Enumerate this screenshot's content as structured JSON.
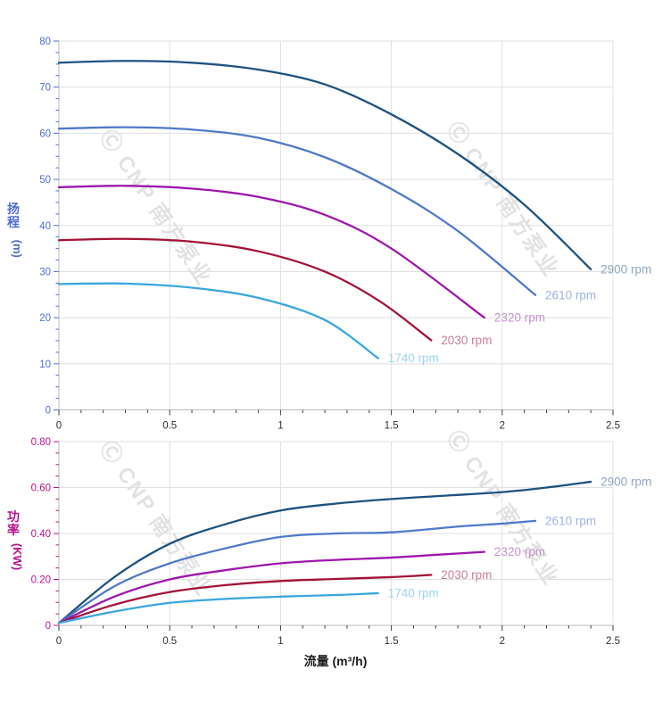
{
  "figure": {
    "x_axis_title": "流量 (m³/h)",
    "watermark": {
      "logo_glyph": "Ⓒ",
      "text": "CNP 南方泵业",
      "color": "#e2e2e2"
    },
    "background": "#ffffff",
    "grid_color": "#dfdfdf",
    "axis_line_color": "#bcbcbc",
    "x_tick_color": "#3c3c3c"
  },
  "chart_data": [
    {
      "type": "line",
      "id": "head-chart",
      "title": "",
      "xlabel": "流量 (m³/h)",
      "ylabel": "扬程 (m)",
      "ylabel_stack": [
        "扬",
        "程"
      ],
      "ylabel_unit": "(m)",
      "axis_text_color": "#4d6ed3",
      "xlim": [
        0,
        2.5
      ],
      "ylim": [
        0,
        80
      ],
      "x_major_ticks": [
        0,
        0.5,
        1,
        1.5,
        2,
        2.5
      ],
      "x_tick_labels": [
        "0",
        "0.5",
        "1",
        "1.5",
        "2",
        "2.5"
      ],
      "x_minor_step": 0.1,
      "y_major_ticks": [
        0,
        10,
        20,
        30,
        40,
        50,
        60,
        70,
        80
      ],
      "y_tick_labels": [
        "0",
        "10",
        "20",
        "30",
        "40",
        "50",
        "60",
        "70",
        "80"
      ],
      "y_minor_step": 2.5,
      "grid": true,
      "legend_position": "curve-ends",
      "series": [
        {
          "name": "2900 rpm",
          "color": "#1d5380",
          "label_color": "#8ca6c2",
          "points": [
            [
              0,
              75.3
            ],
            [
              0.3,
              75.7
            ],
            [
              0.6,
              75.3
            ],
            [
              0.9,
              73.8
            ],
            [
              1.2,
              70.6
            ],
            [
              1.5,
              64.1
            ],
            [
              1.8,
              55.5
            ],
            [
              2.1,
              44.5
            ],
            [
              2.4,
              30.5
            ]
          ]
        },
        {
          "name": "2610 rpm",
          "color": "#4f7ac8",
          "label_color": "#9db4e3",
          "points": [
            [
              0,
              61.0
            ],
            [
              0.3,
              61.3
            ],
            [
              0.6,
              60.8
            ],
            [
              0.9,
              59.0
            ],
            [
              1.2,
              54.8
            ],
            [
              1.5,
              47.9
            ],
            [
              1.8,
              38.8
            ],
            [
              2.15,
              24.9
            ]
          ]
        },
        {
          "name": "2320 rpm",
          "color": "#9e17ad",
          "label_color": "#c890cf",
          "points": [
            [
              0,
              48.3
            ],
            [
              0.3,
              48.6
            ],
            [
              0.6,
              48.0
            ],
            [
              0.9,
              46.2
            ],
            [
              1.2,
              42.3
            ],
            [
              1.5,
              35.0
            ],
            [
              1.92,
              20.0
            ]
          ]
        },
        {
          "name": "2030 rpm",
          "color": "#a31337",
          "label_color": "#ca8099",
          "points": [
            [
              0,
              36.8
            ],
            [
              0.3,
              37.1
            ],
            [
              0.6,
              36.5
            ],
            [
              0.9,
              34.4
            ],
            [
              1.2,
              30.0
            ],
            [
              1.45,
              23.5
            ],
            [
              1.68,
              15.1
            ]
          ]
        },
        {
          "name": "1740 rpm",
          "color": "#3aa7de",
          "label_color": "#9dd3f0",
          "points": [
            [
              0,
              27.3
            ],
            [
              0.3,
              27.4
            ],
            [
              0.6,
              26.5
            ],
            [
              0.9,
              24.3
            ],
            [
              1.2,
              19.5
            ],
            [
              1.44,
              11.2
            ]
          ]
        }
      ]
    },
    {
      "type": "line",
      "id": "power-chart",
      "title": "",
      "xlabel": "流量 (m³/h)",
      "ylabel": "功率 (KW)",
      "ylabel_stack": [
        "功",
        "率"
      ],
      "ylabel_unit": "(KW)",
      "axis_text_color": "#b5138f",
      "xlim": [
        0,
        2.5
      ],
      "ylim": [
        0,
        0.8
      ],
      "x_major_ticks": [
        0,
        0.5,
        1,
        1.5,
        2,
        2.5
      ],
      "x_tick_labels": [
        "0",
        "0.5",
        "1",
        "1.5",
        "2",
        "2.5"
      ],
      "x_minor_step": 0.1,
      "y_major_ticks": [
        0,
        0.2,
        0.4,
        0.6,
        0.8
      ],
      "y_tick_labels": [
        "0",
        "0.20",
        "0.40",
        "0.60",
        "0.80"
      ],
      "y_minor_step": 0.05,
      "grid": true,
      "legend_position": "curve-ends",
      "series": [
        {
          "name": "2900 rpm",
          "color": "#1d5380",
          "label_color": "#8ca6c2",
          "points": [
            [
              0,
              0.01
            ],
            [
              0.25,
              0.21
            ],
            [
              0.5,
              0.355
            ],
            [
              0.75,
              0.44
            ],
            [
              1.0,
              0.5
            ],
            [
              1.25,
              0.53
            ],
            [
              1.5,
              0.55
            ],
            [
              1.75,
              0.565
            ],
            [
              2.0,
              0.58
            ],
            [
              2.2,
              0.6
            ],
            [
              2.4,
              0.625
            ]
          ]
        },
        {
          "name": "2610 rpm",
          "color": "#4f7ac8",
          "label_color": "#9db4e3",
          "points": [
            [
              0,
              0.01
            ],
            [
              0.25,
              0.17
            ],
            [
              0.5,
              0.27
            ],
            [
              0.75,
              0.335
            ],
            [
              1.0,
              0.385
            ],
            [
              1.25,
              0.4
            ],
            [
              1.5,
              0.405
            ],
            [
              1.8,
              0.43
            ],
            [
              2.0,
              0.443
            ],
            [
              2.15,
              0.455
            ]
          ]
        },
        {
          "name": "2320 rpm",
          "color": "#9e17ad",
          "label_color": "#c890cf",
          "points": [
            [
              0,
              0.01
            ],
            [
              0.25,
              0.125
            ],
            [
              0.5,
              0.2
            ],
            [
              0.75,
              0.24
            ],
            [
              1.0,
              0.27
            ],
            [
              1.25,
              0.285
            ],
            [
              1.5,
              0.295
            ],
            [
              1.7,
              0.307
            ],
            [
              1.92,
              0.32
            ]
          ]
        },
        {
          "name": "2030 rpm",
          "color": "#a31337",
          "label_color": "#ca8099",
          "points": [
            [
              0,
              0.01
            ],
            [
              0.25,
              0.09
            ],
            [
              0.5,
              0.145
            ],
            [
              0.75,
              0.175
            ],
            [
              1.0,
              0.193
            ],
            [
              1.25,
              0.202
            ],
            [
              1.5,
              0.21
            ],
            [
              1.68,
              0.22
            ]
          ]
        },
        {
          "name": "1740 rpm",
          "color": "#3aa7de",
          "label_color": "#9dd3f0",
          "points": [
            [
              0,
              0.01
            ],
            [
              0.25,
              0.06
            ],
            [
              0.5,
              0.098
            ],
            [
              0.75,
              0.115
            ],
            [
              1.0,
              0.125
            ],
            [
              1.25,
              0.132
            ],
            [
              1.44,
              0.14
            ]
          ]
        }
      ]
    }
  ]
}
